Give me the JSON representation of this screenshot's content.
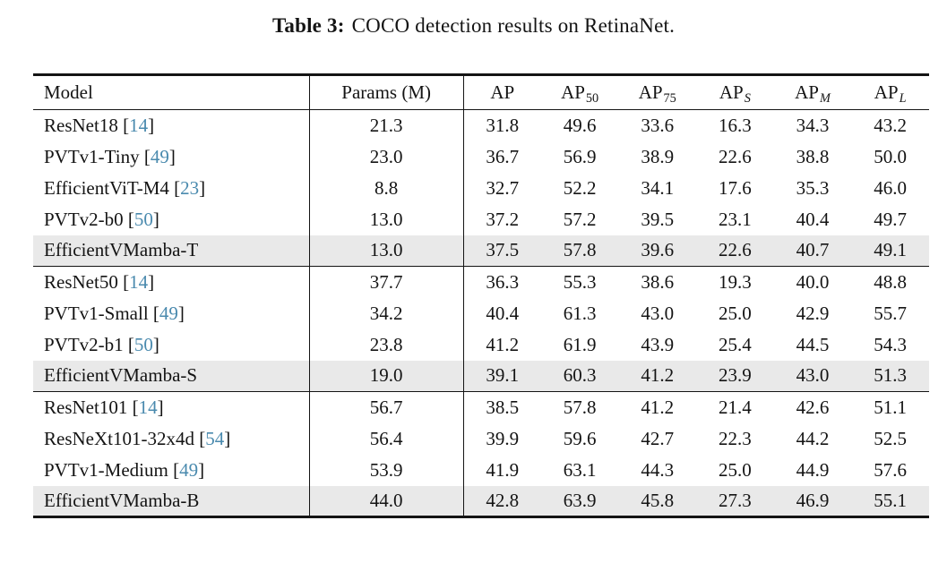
{
  "caption": {
    "label": "Table 3:",
    "text": "COCO detection results on RetinaNet."
  },
  "table": {
    "header": {
      "model": "Model",
      "params": "Params (M)",
      "ap_columns": [
        {
          "base": "AP",
          "sub": "",
          "italic": false
        },
        {
          "base": "AP",
          "sub": "50",
          "italic": false
        },
        {
          "base": "AP",
          "sub": "75",
          "italic": false
        },
        {
          "base": "AP",
          "sub": "S",
          "italic": true
        },
        {
          "base": "AP",
          "sub": "M",
          "italic": true
        },
        {
          "base": "AP",
          "sub": "L",
          "italic": true
        }
      ]
    },
    "groups": [
      {
        "rows": [
          {
            "model": "ResNet18",
            "cite": "14",
            "params": "21.3",
            "values": [
              "31.8",
              "49.6",
              "33.6",
              "16.3",
              "34.3",
              "43.2"
            ],
            "highlight": false
          },
          {
            "model": "PVTv1-Tiny",
            "cite": "49",
            "params": "23.0",
            "values": [
              "36.7",
              "56.9",
              "38.9",
              "22.6",
              "38.8",
              "50.0"
            ],
            "highlight": false
          },
          {
            "model": "EfficientViT-M4",
            "cite": "23",
            "params": "8.8",
            "values": [
              "32.7",
              "52.2",
              "34.1",
              "17.6",
              "35.3",
              "46.0"
            ],
            "highlight": false
          },
          {
            "model": "PVTv2-b0",
            "cite": "50",
            "params": "13.0",
            "values": [
              "37.2",
              "57.2",
              "39.5",
              "23.1",
              "40.4",
              "49.7"
            ],
            "highlight": false
          },
          {
            "model": "EfficientVMamba-T",
            "cite": "",
            "params": "13.0",
            "values": [
              "37.5",
              "57.8",
              "39.6",
              "22.6",
              "40.7",
              "49.1"
            ],
            "highlight": true
          }
        ]
      },
      {
        "rows": [
          {
            "model": "ResNet50",
            "cite": "14",
            "params": "37.7",
            "values": [
              "36.3",
              "55.3",
              "38.6",
              "19.3",
              "40.0",
              "48.8"
            ],
            "highlight": false
          },
          {
            "model": "PVTv1-Small",
            "cite": "49",
            "params": "34.2",
            "values": [
              "40.4",
              "61.3",
              "43.0",
              "25.0",
              "42.9",
              "55.7"
            ],
            "highlight": false
          },
          {
            "model": "PVTv2-b1",
            "cite": "50",
            "params": "23.8",
            "values": [
              "41.2",
              "61.9",
              "43.9",
              "25.4",
              "44.5",
              "54.3"
            ],
            "highlight": false
          },
          {
            "model": "EfficientVMamba-S",
            "cite": "",
            "params": "19.0",
            "values": [
              "39.1",
              "60.3",
              "41.2",
              "23.9",
              "43.0",
              "51.3"
            ],
            "highlight": true
          }
        ]
      },
      {
        "rows": [
          {
            "model": "ResNet101",
            "cite": "14",
            "params": "56.7",
            "values": [
              "38.5",
              "57.8",
              "41.2",
              "21.4",
              "42.6",
              "51.1"
            ],
            "highlight": false
          },
          {
            "model": "ResNeXt101-32x4d",
            "cite": "54",
            "params": "56.4",
            "values": [
              "39.9",
              "59.6",
              "42.7",
              "22.3",
              "44.2",
              "52.5"
            ],
            "highlight": false
          },
          {
            "model": "PVTv1-Medium",
            "cite": "49",
            "params": "53.9",
            "values": [
              "41.9",
              "63.1",
              "44.3",
              "25.0",
              "44.9",
              "57.6"
            ],
            "highlight": false
          },
          {
            "model": "EfficientVMamba-B",
            "cite": "",
            "params": "44.0",
            "values": [
              "42.8",
              "63.9",
              "45.8",
              "27.3",
              "46.9",
              "55.1"
            ],
            "highlight": true
          }
        ]
      }
    ],
    "colors": {
      "citation": "#4a8aae",
      "highlight_row": "#e9e9e9",
      "rule": "#141414"
    }
  }
}
